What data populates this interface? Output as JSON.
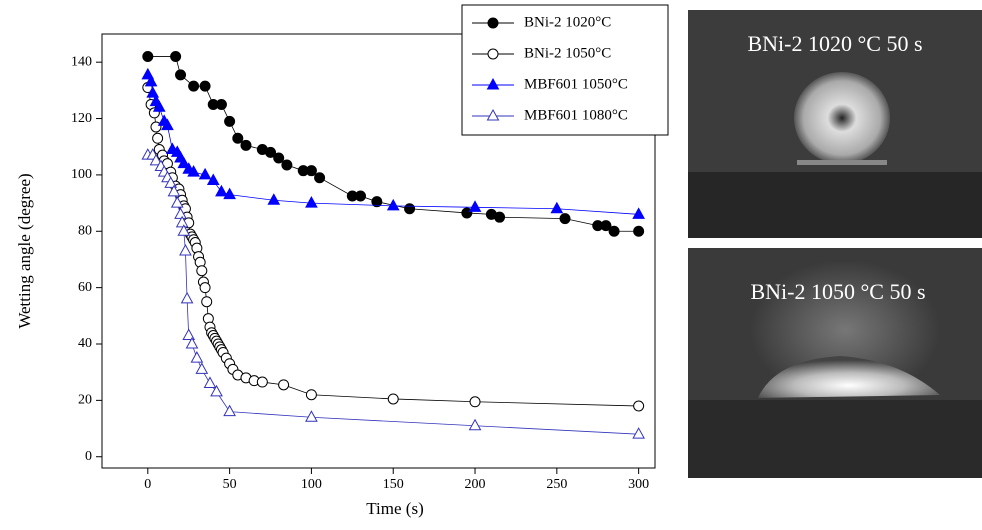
{
  "chart_data": {
    "type": "line",
    "x_label": "Time (s)",
    "y_label": "Wetting angle (degree)",
    "xlim": [
      -28,
      310
    ],
    "xticks": [
      0,
      50,
      100,
      150,
      200,
      250,
      300
    ],
    "ylim": [
      -4,
      150
    ],
    "yticks": [
      0,
      20,
      40,
      60,
      80,
      100,
      120,
      140
    ],
    "legend": "upper right",
    "series": [
      {
        "name": "BNi-2 1020°C",
        "color": "#000000",
        "marker": "circle",
        "filled": true,
        "x": [
          0,
          17,
          20,
          28,
          35,
          40,
          45,
          50,
          55,
          60,
          70,
          75,
          80,
          85,
          95,
          100,
          105,
          125,
          130,
          140,
          160,
          195,
          210,
          215,
          255,
          275,
          280,
          285,
          300
        ],
        "values": [
          142,
          142,
          135.5,
          131.5,
          131.5,
          125,
          125,
          119,
          113,
          110.5,
          109,
          108,
          106,
          103.5,
          101.5,
          101.5,
          99,
          92.5,
          92.5,
          90.5,
          88,
          86.5,
          86,
          85,
          84.5,
          82,
          82,
          80,
          80
        ]
      },
      {
        "name": "BNi-2 1050°C",
        "color": "#000000",
        "marker": "circle",
        "filled": false,
        "x": [
          0,
          2,
          4,
          5,
          6,
          7,
          9,
          10,
          12,
          14,
          15,
          17,
          19,
          20,
          21,
          22,
          23,
          24,
          25,
          26,
          27,
          28,
          29,
          30,
          31,
          32,
          33,
          34,
          35,
          36,
          37,
          38,
          39,
          40,
          41,
          42,
          43,
          44,
          45,
          46,
          48,
          50,
          52,
          55,
          60,
          65,
          70,
          83,
          100,
          150,
          200,
          300
        ],
        "values": [
          131,
          125,
          122,
          117,
          113,
          109,
          107,
          105,
          104,
          101,
          99,
          96,
          95,
          93,
          91,
          89,
          88,
          85,
          83,
          79,
          78,
          77,
          76,
          74,
          71,
          69,
          66,
          62,
          60,
          55,
          49,
          46,
          44,
          43,
          42,
          41,
          40,
          39,
          38,
          37,
          35,
          33,
          31,
          29,
          28,
          27,
          26.5,
          25.5,
          22,
          20.5,
          19.5,
          18
        ]
      },
      {
        "name": "MBF601 1050°C",
        "color": "#0000ff",
        "marker": "triangle",
        "filled": true,
        "x": [
          0,
          2,
          3,
          5,
          7,
          10,
          12,
          15,
          18,
          20,
          22,
          25,
          28,
          35,
          40,
          45,
          50,
          77,
          100,
          150,
          200,
          250,
          300
        ],
        "values": [
          135.5,
          133,
          129,
          126,
          124,
          119,
          117.5,
          109,
          108,
          106,
          104,
          102,
          101,
          100,
          98,
          94,
          93,
          91,
          90,
          89,
          88.5,
          88,
          86
        ]
      },
      {
        "name": "MBF601 1080°C",
        "color": "#3333bb",
        "marker": "triangle",
        "filled": false,
        "x": [
          0,
          3,
          5,
          8,
          10,
          12,
          14,
          16,
          18,
          20,
          21,
          22,
          23,
          24,
          25,
          27,
          30,
          33,
          38,
          42,
          50,
          100,
          200,
          300
        ],
        "values": [
          107,
          107,
          105,
          103,
          101,
          99,
          97,
          94,
          90,
          86,
          83,
          80,
          73,
          56,
          43,
          40,
          35,
          31,
          26,
          23,
          16,
          14,
          11,
          8
        ]
      }
    ]
  },
  "images": [
    {
      "label": "BNi-2 1020 °C 50 s"
    },
    {
      "label": "BNi-2 1050 °C 50 s"
    }
  ]
}
